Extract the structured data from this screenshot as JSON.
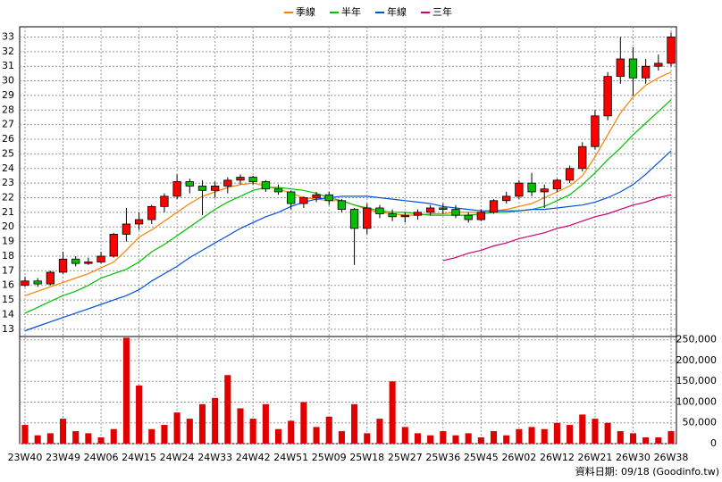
{
  "chart_data": {
    "type": "candlestick",
    "categories": [
      "23W40",
      null,
      null,
      "23W49",
      null,
      null,
      "24W06",
      null,
      null,
      "24W15",
      null,
      null,
      "24W24",
      null,
      null,
      "24W33",
      null,
      null,
      "24W42",
      null,
      null,
      "24W51",
      null,
      null,
      "25W09",
      null,
      null,
      "25W18",
      null,
      null,
      "25W27",
      null,
      null,
      "25W36",
      null,
      null,
      "25W45",
      null,
      null,
      "26W02",
      null,
      null,
      "26W12",
      null,
      null,
      "26W21",
      null,
      null,
      "26W30",
      null,
      null,
      "26W38"
    ],
    "open": [
      16.0,
      16.3,
      16.1,
      16.9,
      17.8,
      17.5,
      17.6,
      18.0,
      19.5,
      20.2,
      20.5,
      21.4,
      22.1,
      23.1,
      22.8,
      22.5,
      22.8,
      23.2,
      23.4,
      23.1,
      22.6,
      22.4,
      21.6,
      22.0,
      22.2,
      21.8,
      21.2,
      19.9,
      21.3,
      20.9,
      20.7,
      20.8,
      21.0,
      21.3,
      21.2,
      20.8,
      20.5,
      21.0,
      21.8,
      22.1,
      23.0,
      22.4,
      22.6,
      23.2,
      24.0,
      25.5,
      27.6,
      30.3,
      31.5,
      30.2,
      31.0,
      31.2
    ],
    "high": [
      16.6,
      16.5,
      17.0,
      18.3,
      18.0,
      17.9,
      18.3,
      19.6,
      21.3,
      21.0,
      21.5,
      22.3,
      23.6,
      23.3,
      23.2,
      23.1,
      23.4,
      23.6,
      23.5,
      23.2,
      22.9,
      22.5,
      22.1,
      22.4,
      22.4,
      21.9,
      21.3,
      21.6,
      21.5,
      21.2,
      21.0,
      21.2,
      21.5,
      21.6,
      21.5,
      21.0,
      21.2,
      21.9,
      22.4,
      23.2,
      23.7,
      22.9,
      23.3,
      24.2,
      25.8,
      28.0,
      30.6,
      33.0,
      32.3,
      31.5,
      31.8,
      33.3
    ],
    "low": [
      15.9,
      15.9,
      16.0,
      16.8,
      17.3,
      17.4,
      17.5,
      17.9,
      19.0,
      19.8,
      20.2,
      21.0,
      21.9,
      22.3,
      20.8,
      22.0,
      22.3,
      22.9,
      22.9,
      22.4,
      22.2,
      21.2,
      21.3,
      21.7,
      21.5,
      21.0,
      17.4,
      19.5,
      20.6,
      20.4,
      20.3,
      20.5,
      20.8,
      20.9,
      20.6,
      20.3,
      20.4,
      20.9,
      21.6,
      21.9,
      22.1,
      21.3,
      22.4,
      23.0,
      23.8,
      25.3,
      27.3,
      29.8,
      29.0,
      29.8,
      30.7,
      31.0
    ],
    "close": [
      16.3,
      16.1,
      16.9,
      17.8,
      17.5,
      17.6,
      18.0,
      19.5,
      20.2,
      20.5,
      21.4,
      22.1,
      23.1,
      22.8,
      22.5,
      22.8,
      23.2,
      23.4,
      23.1,
      22.6,
      22.4,
      21.6,
      22.0,
      22.2,
      21.8,
      21.2,
      19.9,
      21.3,
      20.9,
      20.7,
      20.8,
      21.0,
      21.3,
      21.2,
      20.8,
      20.5,
      21.0,
      21.8,
      22.1,
      23.0,
      22.4,
      22.6,
      23.2,
      24.0,
      25.5,
      27.6,
      30.3,
      31.5,
      30.2,
      31.0,
      31.2,
      33.0
    ],
    "up_color": "#ff0000",
    "down_color": "#00c000",
    "ylim": [
      12.5,
      33.7
    ],
    "yticks": [
      13,
      14,
      15,
      16,
      17,
      18,
      19,
      20,
      21,
      22,
      23,
      24,
      25,
      26,
      27,
      28,
      29,
      30,
      31,
      32,
      33
    ],
    "grid": true,
    "series": [
      {
        "name": "季線",
        "color": "#ff8000",
        "values": [
          15.3,
          15.6,
          15.9,
          16.2,
          16.5,
          16.8,
          17.2,
          17.6,
          18.4,
          19.3,
          19.8,
          20.4,
          21.0,
          21.6,
          22.1,
          22.4,
          22.7,
          22.9,
          23.0,
          22.8,
          22.6,
          22.3,
          22.0,
          21.9,
          21.8,
          21.8,
          21.5,
          21.2,
          21.0,
          20.9,
          20.8,
          20.8,
          20.9,
          20.9,
          21.0,
          21.0,
          21.0,
          21.1,
          21.2,
          21.4,
          21.6,
          22.0,
          22.4,
          22.8,
          23.5,
          24.8,
          26.3,
          27.8,
          28.9,
          29.7,
          30.2,
          30.6
        ]
      },
      {
        "name": "半年",
        "color": "#00c000",
        "values": [
          14.1,
          14.5,
          14.9,
          15.3,
          15.6,
          16.0,
          16.5,
          16.8,
          17.1,
          17.6,
          18.3,
          18.8,
          19.4,
          20.0,
          20.6,
          21.2,
          21.7,
          22.1,
          22.5,
          22.7,
          22.7,
          22.6,
          22.5,
          22.3,
          22.0,
          21.8,
          21.5,
          21.3,
          21.1,
          21.0,
          21.0,
          20.9,
          20.8,
          20.8,
          20.8,
          20.8,
          20.9,
          21.0,
          21.0,
          21.1,
          21.2,
          21.4,
          21.8,
          22.2,
          22.9,
          23.7,
          24.6,
          25.4,
          26.3,
          27.1,
          27.9,
          28.7
        ]
      },
      {
        "name": "年線",
        "color": "#0050e0",
        "values": [
          12.9,
          13.2,
          13.5,
          13.8,
          14.1,
          14.4,
          14.7,
          15.0,
          15.3,
          15.7,
          16.3,
          16.8,
          17.3,
          17.9,
          18.4,
          18.9,
          19.4,
          19.9,
          20.3,
          20.7,
          21.0,
          21.4,
          21.7,
          21.9,
          22.0,
          22.1,
          22.1,
          22.1,
          22.0,
          21.9,
          21.8,
          21.7,
          21.6,
          21.4,
          21.3,
          21.2,
          21.1,
          21.1,
          21.1,
          21.1,
          21.2,
          21.2,
          21.3,
          21.4,
          21.5,
          21.7,
          22.0,
          22.4,
          22.9,
          23.6,
          24.4,
          25.2
        ]
      },
      {
        "name": "三年",
        "color": "#d0006f",
        "values": [
          null,
          null,
          null,
          null,
          null,
          null,
          null,
          null,
          null,
          null,
          null,
          null,
          null,
          null,
          null,
          null,
          null,
          null,
          null,
          null,
          null,
          null,
          null,
          null,
          null,
          null,
          null,
          null,
          null,
          null,
          null,
          null,
          null,
          17.7,
          17.9,
          18.2,
          18.4,
          18.7,
          18.9,
          19.2,
          19.4,
          19.6,
          19.9,
          20.1,
          20.4,
          20.7,
          20.9,
          21.2,
          21.5,
          21.7,
          22.0,
          22.2
        ]
      }
    ],
    "volume": {
      "type": "bar",
      "color": "#e00000",
      "values": [
        45000,
        20000,
        25000,
        60000,
        30000,
        25000,
        15000,
        35000,
        255000,
        140000,
        35000,
        45000,
        75000,
        60000,
        95000,
        110000,
        165000,
        85000,
        60000,
        95000,
        35000,
        55000,
        100000,
        40000,
        65000,
        30000,
        95000,
        25000,
        60000,
        150000,
        40000,
        25000,
        20000,
        30000,
        20000,
        25000,
        15000,
        30000,
        20000,
        35000,
        40000,
        35000,
        50000,
        45000,
        70000,
        60000,
        50000,
        30000,
        25000,
        15000,
        15000,
        30000
      ],
      "ylim": [
        0,
        258000
      ],
      "yticks": [
        0,
        {
          "value": 50000,
          "label": "50,000"
        },
        {
          "value": 100000,
          "label": "100,000"
        },
        {
          "value": 150000,
          "label": "150,000"
        },
        {
          "value": 200000,
          "label": "200,000"
        },
        {
          "value": 250000,
          "label": "250,000"
        }
      ]
    },
    "source": "資料日期: 09/18 (Goodinfo.tw)"
  }
}
